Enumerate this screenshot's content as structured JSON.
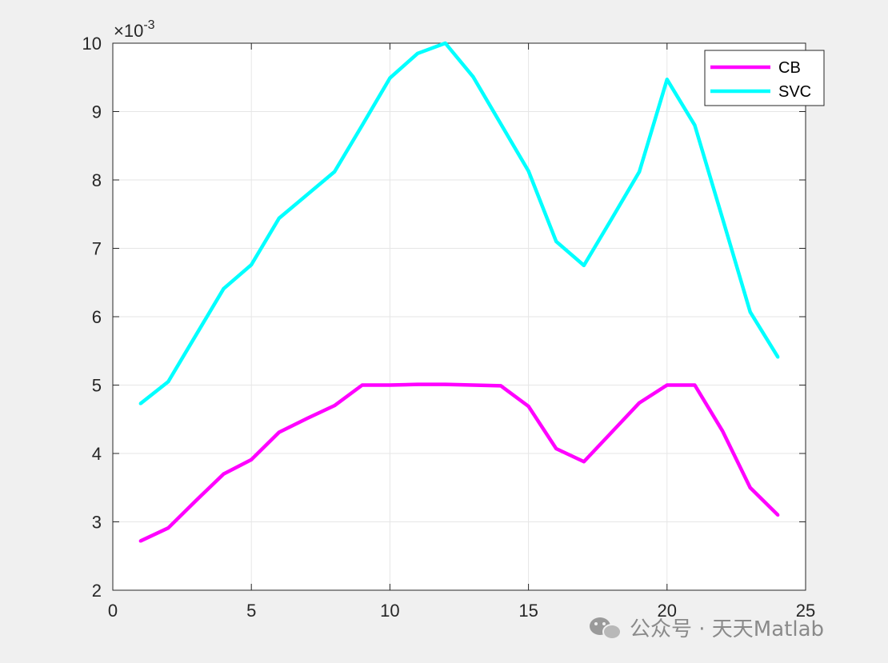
{
  "chart_data": {
    "type": "line",
    "xlim": [
      0,
      25
    ],
    "ylim": [
      2,
      10
    ],
    "y_scale_exponent": "-3",
    "x_ticks": [
      "0",
      "5",
      "10",
      "15",
      "20",
      "25"
    ],
    "y_ticks": [
      "2",
      "3",
      "4",
      "5",
      "6",
      "7",
      "8",
      "9",
      "10"
    ],
    "grid": true,
    "legend_position": "top-right",
    "x": [
      1,
      2,
      3,
      4,
      5,
      6,
      7,
      8,
      9,
      10,
      11,
      12,
      13,
      14,
      15,
      16,
      17,
      18,
      19,
      20,
      21,
      22,
      23,
      24
    ],
    "series": [
      {
        "name": "CB",
        "color": "#ff00ff",
        "values": [
          2.72,
          2.91,
          3.31,
          3.7,
          3.91,
          4.31,
          4.51,
          4.7,
          5.0,
          5.0,
          5.01,
          5.01,
          5.0,
          4.99,
          4.69,
          4.07,
          3.88,
          4.31,
          4.74,
          5.0,
          5.0,
          4.33,
          3.5,
          3.1
        ]
      },
      {
        "name": "SVC",
        "color": "#00ffff",
        "values": [
          4.73,
          5.05,
          5.73,
          6.41,
          6.76,
          7.44,
          7.78,
          8.12,
          8.8,
          9.49,
          9.85,
          10.0,
          9.51,
          8.82,
          8.13,
          7.1,
          6.75,
          7.43,
          8.12,
          9.47,
          8.8,
          7.44,
          6.07,
          5.41
        ]
      }
    ]
  },
  "exponent_label": {
    "times": "×10",
    "power": "-3"
  },
  "watermark": {
    "text": "公众号 · 天天Matlab",
    "icon": "wechat-icon"
  }
}
